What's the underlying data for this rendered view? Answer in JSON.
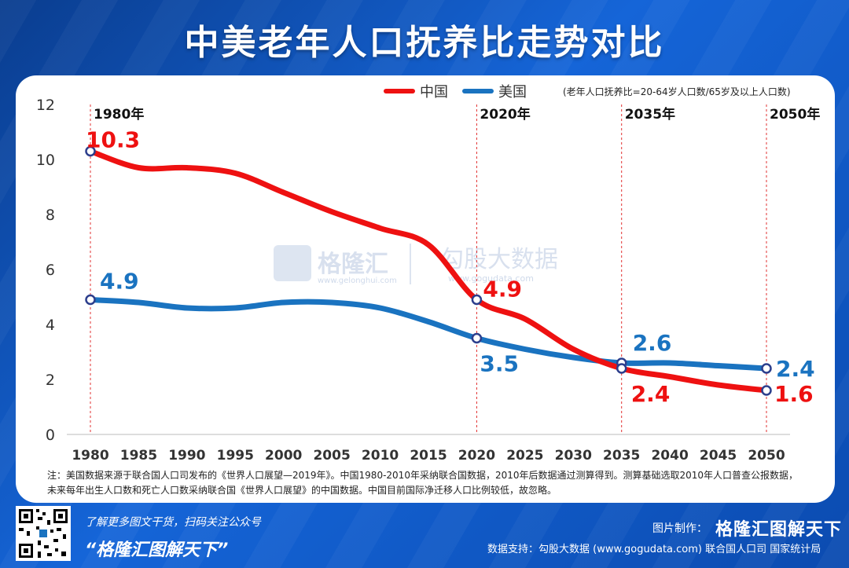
{
  "title": "中美老年人口抚养比走势对比",
  "legend": {
    "china": "中国",
    "usa": "美国"
  },
  "formula": "(老年人口抚养比=20-64岁人口数/65岁及以上人口数)",
  "watermark": {
    "brand": "格隆汇",
    "site": "www.gelonghui.com",
    "brand2": "勾股大数据",
    "site2": "www.gogudata.com"
  },
  "colors": {
    "china": "#ee1111",
    "usa": "#1a73c0",
    "panel": "#ffffff"
  },
  "chart_data": {
    "type": "line",
    "x": [
      1980,
      1985,
      1990,
      1995,
      2000,
      2005,
      2010,
      2015,
      2020,
      2025,
      2030,
      2035,
      2040,
      2045,
      2050
    ],
    "xlim": [
      1980,
      2050
    ],
    "ylim": [
      0,
      12
    ],
    "yticks": [
      0,
      2,
      4,
      6,
      8,
      10,
      12
    ],
    "grid": false,
    "legend_position": "top",
    "series": [
      {
        "name": "中国",
        "color": "#ee1111",
        "points": [
          [
            1980,
            10.3
          ],
          [
            1985,
            9.7
          ],
          [
            1990,
            9.7
          ],
          [
            1995,
            9.5
          ],
          [
            2000,
            8.8
          ],
          [
            2005,
            8.1
          ],
          [
            2010,
            7.5
          ],
          [
            2015,
            6.9
          ],
          [
            2020,
            4.9
          ],
          [
            2025,
            4.2
          ],
          [
            2030,
            3.1
          ],
          [
            2035,
            2.4
          ],
          [
            2040,
            2.1
          ],
          [
            2045,
            1.8
          ],
          [
            2050,
            1.6
          ]
        ]
      },
      {
        "name": "美国",
        "color": "#1a73c0",
        "points": [
          [
            1980,
            4.9
          ],
          [
            1985,
            4.8
          ],
          [
            1990,
            4.6
          ],
          [
            1995,
            4.6
          ],
          [
            2000,
            4.8
          ],
          [
            2005,
            4.8
          ],
          [
            2010,
            4.6
          ],
          [
            2015,
            4.1
          ],
          [
            2020,
            3.5
          ],
          [
            2025,
            3.1
          ],
          [
            2030,
            2.8
          ],
          [
            2035,
            2.6
          ],
          [
            2040,
            2.6
          ],
          [
            2045,
            2.5
          ],
          [
            2050,
            2.4
          ]
        ]
      }
    ],
    "markers": [
      {
        "year": 1980,
        "label": "1980年"
      },
      {
        "year": 2020,
        "label": "2020年"
      },
      {
        "year": 2035,
        "label": "2035年"
      },
      {
        "year": 2050,
        "label": "2050年"
      }
    ],
    "annotations": [
      {
        "series": "中国",
        "x": 1980,
        "y": 10.3,
        "text": "10.3"
      },
      {
        "series": "美国",
        "x": 1980,
        "y": 4.9,
        "text": "4.9"
      },
      {
        "series": "中国",
        "x": 2020,
        "y": 4.9,
        "text": "4.9"
      },
      {
        "series": "美国",
        "x": 2020,
        "y": 3.5,
        "text": "3.5"
      },
      {
        "series": "美国",
        "x": 2035,
        "y": 2.6,
        "text": "2.6"
      },
      {
        "series": "中国",
        "x": 2035,
        "y": 2.4,
        "text": "2.4"
      },
      {
        "series": "美国",
        "x": 2050,
        "y": 2.4,
        "text": "2.4"
      },
      {
        "series": "中国",
        "x": 2050,
        "y": 1.6,
        "text": "1.6"
      }
    ]
  },
  "notes": {
    "line1": "注：美国数据来源于联合国人口司发布的《世界人口展望—2019年》。中国1980-2010年采纳联合国数据，2010年后数据通过测算得到。测算基础选取2010年人口普查公报数据，",
    "line2": "未来每年出生人口数和死亡人口数采纳联合国《世界人口展望》的中国数据。中国目前国际净迁移人口比例较低，故忽略。"
  },
  "footer": {
    "promo": "了解更多图文干货，扫码关注公众号",
    "brand_quote": "“格隆汇图解天下”",
    "credit_label": "图片制作：",
    "credit_brand": "格隆汇图解天下",
    "source": "数据支持：勾股大数据 (www.gogudata.com) 联合国人口司 国家统计局"
  }
}
